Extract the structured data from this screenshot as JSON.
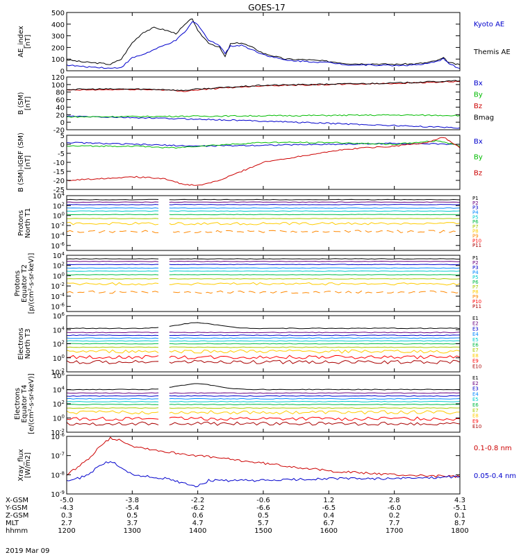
{
  "title": "GOES-17",
  "date": "2019 Mar 09",
  "chart_data": {
    "type": "line",
    "x_unit": "hhmm",
    "x_ticks": [
      "1200",
      "1300",
      "1400",
      "1500",
      "1600",
      "1700",
      "1800"
    ],
    "panels": [
      {
        "id": "ae",
        "ylabel": [
          "AE_index",
          "[nT]"
        ],
        "scale": "linear",
        "ylim": [
          0,
          500
        ],
        "yticks": [
          0,
          100,
          200,
          300,
          400,
          500
        ],
        "ytick_labels": [
          "0",
          "100",
          "200",
          "300",
          "400",
          "500"
        ],
        "legend": [
          {
            "name": "Kyoto AE",
            "color": "#0000cc"
          },
          {
            "name": "Themis AE",
            "color": "#000000"
          }
        ],
        "series": [
          {
            "name": "Themis AE",
            "color": "#000000",
            "t": [
              1200,
              1215,
              1230,
              1240,
              1250,
              1300,
              1310,
              1320,
              1330,
              1340,
              1350,
              1355,
              1400,
              1410,
              1420,
              1425,
              1430,
              1440,
              1450,
              1500,
              1520,
              1540,
              1600,
              1620,
              1640,
              1700,
              1720,
              1730,
              1740,
              1745,
              1750,
              1800
            ],
            "v": [
              95,
              75,
              65,
              55,
              100,
              240,
              330,
              370,
              350,
              320,
              410,
              450,
              340,
              240,
              200,
              120,
              230,
              240,
              200,
              150,
              100,
              95,
              80,
              60,
              60,
              55,
              60,
              70,
              90,
              110,
              70,
              50
            ]
          },
          {
            "name": "Kyoto AE",
            "color": "#0000cc",
            "t": [
              1200,
              1215,
              1230,
              1240,
              1250,
              1300,
              1310,
              1320,
              1330,
              1340,
              1350,
              1355,
              1400,
              1410,
              1420,
              1425,
              1430,
              1440,
              1450,
              1500,
              1520,
              1540,
              1600,
              1620,
              1640,
              1700,
              1720,
              1730,
              1740,
              1745,
              1750,
              1800
            ],
            "v": [
              50,
              35,
              30,
              20,
              30,
              110,
              140,
              180,
              220,
              260,
              350,
              420,
              400,
              260,
              220,
              150,
              210,
              220,
              180,
              140,
              90,
              80,
              70,
              50,
              50,
              45,
              50,
              60,
              80,
              110,
              60,
              20
            ]
          }
        ]
      },
      {
        "id": "bsm",
        "ylabel": [
          "B (SM)",
          "[nT]"
        ],
        "scale": "linear",
        "ylim": [
          -20,
          120
        ],
        "yticks": [
          -20,
          0,
          20,
          40,
          60,
          80,
          100,
          120
        ],
        "ytick_labels": [
          "-20",
          "0",
          "20",
          "40",
          "60",
          "80",
          "100",
          "120"
        ],
        "legend": [
          {
            "name": "Bx",
            "color": "#0000cc"
          },
          {
            "name": "By",
            "color": "#00bb00"
          },
          {
            "name": "Bz",
            "color": "#cc0000"
          },
          {
            "name": "Bmag",
            "color": "#000000"
          }
        ],
        "series": [
          {
            "name": "Bx",
            "color": "#0000cc",
            "t": [
              1200,
              1300,
              1400,
              1500,
              1600,
              1700,
              1800
            ],
            "v": [
              16,
              12,
              8,
              3,
              -3,
              -9,
              -15
            ]
          },
          {
            "name": "By",
            "color": "#00bb00",
            "t": [
              1200,
              1300,
              1400,
              1500,
              1600,
              1700,
              1800
            ],
            "v": [
              14,
              15,
              16,
              17,
              18,
              19,
              18
            ]
          },
          {
            "name": "Bz",
            "color": "#cc0000",
            "t": [
              1200,
              1230,
              1300,
              1330,
              1345,
              1400,
              1430,
              1500,
              1600,
              1700,
              1800
            ],
            "v": [
              85,
              86,
              87,
              86,
              82,
              86,
              92,
              97,
              100,
              103,
              108
            ]
          },
          {
            "name": "Bmag",
            "color": "#000000",
            "t": [
              1200,
              1230,
              1300,
              1330,
              1345,
              1400,
              1430,
              1500,
              1600,
              1700,
              1800
            ],
            "v": [
              87,
              88,
              88,
              87,
              84,
              88,
              93,
              98,
              101,
              104,
              110
            ]
          }
        ]
      },
      {
        "id": "dbsm",
        "ylabel": [
          "B (SM)-IGRF (SM)",
          "[nT]"
        ],
        "scale": "linear",
        "ylim": [
          -25,
          5
        ],
        "yticks": [
          -25,
          -20,
          -15,
          -10,
          -5,
          0,
          5
        ],
        "ytick_labels": [
          "-25",
          "-20",
          "-15",
          "-10",
          "-5",
          "0",
          "5"
        ],
        "legend": [
          {
            "name": "Bx",
            "color": "#0000cc"
          },
          {
            "name": "By",
            "color": "#00bb00"
          },
          {
            "name": "Bz",
            "color": "#cc0000"
          }
        ],
        "series": [
          {
            "name": "Bx",
            "color": "#0000cc",
            "t": [
              1200,
              1300,
              1400,
              1500,
              1600,
              1700,
              1800
            ],
            "v": [
              1,
              0,
              -1,
              -0.5,
              0,
              0.5,
              0
            ]
          },
          {
            "name": "By",
            "color": "#00bb00",
            "t": [
              1200,
              1300,
              1340,
              1400,
              1430,
              1500,
              1600,
              1700,
              1740,
              1800
            ],
            "v": [
              -1,
              -1,
              -2,
              -1,
              0,
              1,
              1,
              0,
              2,
              -1
            ]
          },
          {
            "name": "Bz",
            "color": "#cc0000",
            "t": [
              1200,
              1230,
              1300,
              1330,
              1345,
              1400,
              1420,
              1440,
              1500,
              1530,
              1600,
              1630,
              1700,
              1730,
              1745,
              1800
            ],
            "v": [
              -20,
              -19,
              -18,
              -19,
              -22,
              -23,
              -20,
              -15,
              -10,
              -7,
              -4,
              -2,
              -1,
              1,
              4,
              -2
            ]
          }
        ]
      },
      {
        "id": "pn",
        "ylabel": [
          "Protons",
          "North T1"
        ],
        "scale": "log",
        "ylim": [
          -7,
          4
        ],
        "yticks": [
          -6,
          -4,
          -2,
          0,
          2,
          4
        ],
        "ytick_labels": [
          "10^-6",
          "10^-4",
          "10^-2",
          "10^0",
          "10^2",
          "10^4"
        ],
        "gap": [
          1324,
          1334
        ],
        "legend": [
          {
            "name": "P1",
            "color": "#000000"
          },
          {
            "name": "P2",
            "color": "#6a0080"
          },
          {
            "name": "P3",
            "color": "#0000cc"
          },
          {
            "name": "P4",
            "color": "#0088ff"
          },
          {
            "name": "P5",
            "color": "#00cccc"
          },
          {
            "name": "P6",
            "color": "#00bb44"
          },
          {
            "name": "P7",
            "color": "#aacc00"
          },
          {
            "name": "P8",
            "color": "#ffcc00"
          },
          {
            "name": "P9",
            "color": "#ff8800"
          },
          {
            "name": "P10",
            "color": "#ff0000"
          },
          {
            "name": "P11",
            "color": "#aa0000"
          }
        ],
        "levels": [
          3.2,
          2.7,
          2.2,
          1.5,
          0.9,
          0.2,
          -0.6,
          -1.6,
          -3.2
        ],
        "level_colors": [
          "#000000",
          "#6a0080",
          "#0000cc",
          "#0088ff",
          "#00cccc",
          "#00bb44",
          "#aacc00",
          "#ffcc00",
          "#ff8800"
        ]
      },
      {
        "id": "pe",
        "ylabel": [
          "Protons",
          "Equator T2",
          "[p/(cm²-s-sr-keV)]"
        ],
        "scale": "log",
        "ylim": [
          -7,
          4
        ],
        "yticks": [
          -6,
          -4,
          -2,
          0,
          2,
          4
        ],
        "ytick_labels": [
          "10^-6",
          "10^-4",
          "10^-2",
          "10^0",
          "10^2",
          "10^4"
        ],
        "gap": [
          1324,
          1334
        ],
        "legend": [
          {
            "name": "P1",
            "color": "#000000"
          },
          {
            "name": "P2",
            "color": "#6a0080"
          },
          {
            "name": "P3",
            "color": "#0000cc"
          },
          {
            "name": "P4",
            "color": "#0088ff"
          },
          {
            "name": "P5",
            "color": "#00cccc"
          },
          {
            "name": "P6",
            "color": "#00bb44"
          },
          {
            "name": "P7",
            "color": "#aacc00"
          },
          {
            "name": "P8",
            "color": "#ffcc00"
          },
          {
            "name": "P9",
            "color": "#ff8800"
          },
          {
            "name": "P10",
            "color": "#ff0000"
          },
          {
            "name": "P11",
            "color": "#aa0000"
          }
        ],
        "levels": [
          3.3,
          2.8,
          2.2,
          1.5,
          0.9,
          0.2,
          -0.6,
          -1.6,
          -3.2
        ],
        "level_colors": [
          "#000000",
          "#6a0080",
          "#0000cc",
          "#0088ff",
          "#00cccc",
          "#00bb44",
          "#aacc00",
          "#ffcc00",
          "#ff8800"
        ]
      },
      {
        "id": "en",
        "ylabel": [
          "Electrons",
          "North T3"
        ],
        "scale": "log",
        "ylim": [
          -2,
          6
        ],
        "yticks": [
          -2,
          0,
          2,
          4,
          6
        ],
        "ytick_labels": [
          "10^-2",
          "10^0",
          "10^2",
          "10^4",
          "10^6"
        ],
        "gap": [
          1324,
          1334
        ],
        "legend": [
          {
            "name": "E1",
            "color": "#000000"
          },
          {
            "name": "E2",
            "color": "#6a0080"
          },
          {
            "name": "E3",
            "color": "#0000cc"
          },
          {
            "name": "E4",
            "color": "#0088ff"
          },
          {
            "name": "E5",
            "color": "#00cccc"
          },
          {
            "name": "E6",
            "color": "#00bb44"
          },
          {
            "name": "E7",
            "color": "#aacc00"
          },
          {
            "name": "E8",
            "color": "#ffcc00"
          },
          {
            "name": "E9",
            "color": "#ff0000"
          },
          {
            "name": "E10",
            "color": "#aa0000"
          }
        ],
        "levels": [
          4.2,
          3.6,
          3.2,
          2.8,
          2.4,
          2.0,
          1.5,
          0.9,
          0.1,
          -0.6
        ],
        "level_colors": [
          "#000000",
          "#6a0080",
          "#0000cc",
          "#0088ff",
          "#00cccc",
          "#00bb44",
          "#aacc00",
          "#ffcc00",
          "#ff0000",
          "#aa0000"
        ]
      },
      {
        "id": "ee",
        "ylabel": [
          "Electrons",
          "Equator T4",
          "[e/(cm²-s-sr-keV)]"
        ],
        "scale": "log",
        "ylim": [
          -2,
          6
        ],
        "yticks": [
          -2,
          0,
          2,
          4,
          6
        ],
        "ytick_labels": [
          "10^-2",
          "10^0",
          "10^2",
          "10^4",
          "10^6"
        ],
        "gap": [
          1324,
          1334
        ],
        "legend": [
          {
            "name": "E1",
            "color": "#000000"
          },
          {
            "name": "E2",
            "color": "#6a0080"
          },
          {
            "name": "E3",
            "color": "#0000cc"
          },
          {
            "name": "E4",
            "color": "#0088ff"
          },
          {
            "name": "E5",
            "color": "#00cccc"
          },
          {
            "name": "E6",
            "color": "#00bb44"
          },
          {
            "name": "E7",
            "color": "#aacc00"
          },
          {
            "name": "E8",
            "color": "#ffcc00"
          },
          {
            "name": "E9",
            "color": "#ff0000"
          },
          {
            "name": "E10",
            "color": "#aa0000"
          }
        ],
        "levels": [
          4.0,
          3.5,
          3.1,
          2.7,
          2.3,
          1.9,
          1.4,
          0.8,
          -0.1,
          -0.8
        ],
        "level_colors": [
          "#000000",
          "#6a0080",
          "#0000cc",
          "#0088ff",
          "#00cccc",
          "#00bb44",
          "#aacc00",
          "#ffcc00",
          "#ff0000",
          "#aa0000"
        ]
      },
      {
        "id": "xray",
        "ylabel": [
          "Xray_flux",
          "[W/m2]"
        ],
        "scale": "log",
        "ylim": [
          -9,
          -6
        ],
        "yticks": [
          -9,
          -8,
          -7,
          -6
        ],
        "ytick_labels": [
          "10^-9",
          "10^-8",
          "10^-7",
          "10^-6"
        ],
        "legend": [
          {
            "name": "0.1-0.8 nm",
            "color": "#cc0000"
          },
          {
            "name": "0.05-0.4 nm",
            "color": "#0000cc"
          }
        ],
        "series": [
          {
            "name": "0.1-0.8 nm",
            "color": "#cc0000",
            "t": [
              1200,
              1210,
              1220,
              1230,
              1240,
              1250,
              1300,
              1330,
              1400,
              1430,
              1500,
              1530,
              1600,
              1630,
              1700,
              1730,
              1800
            ],
            "v": [
              -8.0,
              -7.6,
              -7.2,
              -6.5,
              -6.1,
              -6.2,
              -6.5,
              -6.8,
              -7.0,
              -7.2,
              -7.4,
              -7.6,
              -7.8,
              -7.9,
              -8.0,
              -8.05,
              -8.1
            ]
          },
          {
            "name": "0.05-0.4 nm",
            "color": "#0000cc",
            "t": [
              1200,
              1210,
              1220,
              1230,
              1240,
              1250,
              1300,
              1330,
              1345,
              1400,
              1410,
              1430,
              1500,
              1530,
              1600,
              1630,
              1700,
              1730,
              1800
            ],
            "v": [
              -8.3,
              -8.2,
              -8.0,
              -7.5,
              -7.3,
              -7.6,
              -8.0,
              -8.2,
              -8.4,
              -8.6,
              -8.3,
              -8.3,
              -8.3,
              -8.25,
              -8.2,
              -8.2,
              -8.2,
              -8.15,
              -8.1
            ]
          }
        ]
      }
    ]
  },
  "orbit_table": {
    "rows": [
      {
        "label": "X-GSM",
        "values": [
          "-5.0",
          "-3.8",
          "-2.2",
          "-0.6",
          "1.2",
          "2.8",
          "4.3"
        ]
      },
      {
        "label": "Y-GSM",
        "values": [
          "-4.3",
          "-5.4",
          "-6.2",
          "-6.6",
          "-6.5",
          "-6.0",
          "-5.1"
        ]
      },
      {
        "label": "Z-GSM",
        "values": [
          "0.3",
          "0.5",
          "0.6",
          "0.5",
          "0.4",
          "0.2",
          "0.1"
        ]
      },
      {
        "label": "MLT",
        "values": [
          "2.7",
          "3.7",
          "4.7",
          "5.7",
          "6.7",
          "7.7",
          "8.7"
        ]
      },
      {
        "label": "hhmm",
        "values": [
          "1200",
          "1300",
          "1400",
          "1500",
          "1600",
          "1700",
          "1800"
        ]
      }
    ]
  }
}
